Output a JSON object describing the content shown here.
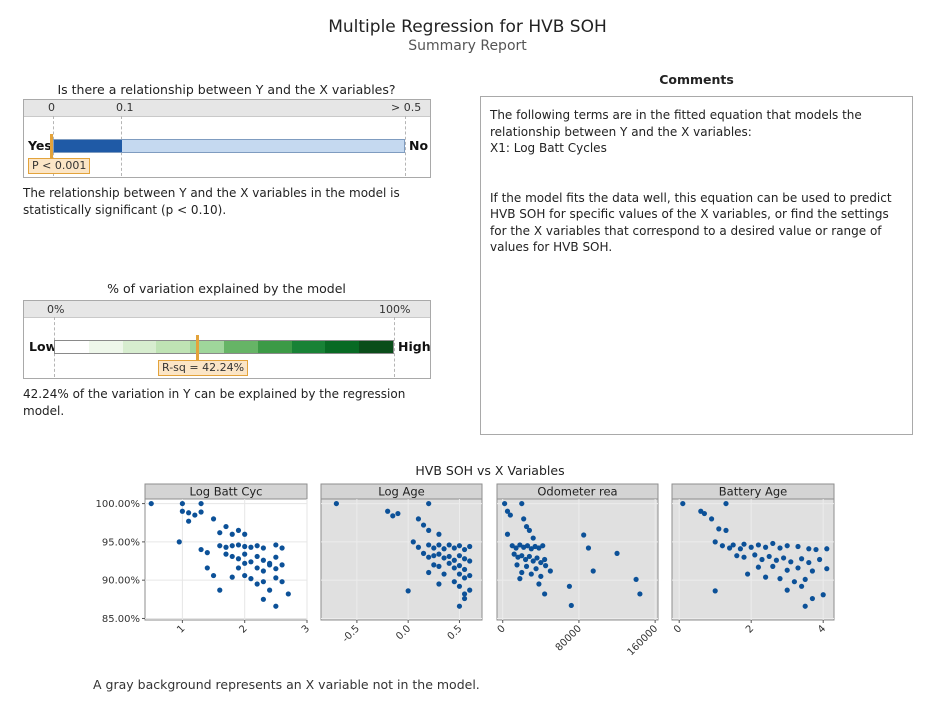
{
  "report": {
    "title": "Multiple Regression for HVB SOH",
    "subtitle": "Summary Report"
  },
  "relationship": {
    "question": "Is there a relationship between Y and the X variables?",
    "scale_labels": [
      "0",
      "0.1",
      "> 0.5"
    ],
    "left_label": "Yes",
    "right_label": "No",
    "p_label": "P < 0.001",
    "p_value": 0.001,
    "conclusion": "The relationship between Y and the X variables in the model is statistically significant (p < 0.10).",
    "colors": {
      "significant": "#1f5aa6",
      "not_significant": "#c5d9f0",
      "marker": "#e3a33b"
    }
  },
  "variation": {
    "heading": "% of variation explained by the model",
    "scale_labels": [
      "0%",
      "100%"
    ],
    "left_label": "Low",
    "right_label": "High",
    "rsq_label": "R-sq = 42.24%",
    "rsq_value": 42.24,
    "conclusion": "42.24% of the variation in Y can be explained by the regression model.",
    "band_colors": [
      "#ffffff",
      "#eef7ea",
      "#d7edcf",
      "#bfe3b4",
      "#9fd69b",
      "#66b466",
      "#3c9a46",
      "#188236",
      "#086a24",
      "#0a4d1a"
    ]
  },
  "comments": {
    "heading": "Comments",
    "lines": [
      "The following terms are in the fitted equation that models the relationship between Y and the X variables:",
      "X1: Log Batt Cycles",
      "If the model fits the data well, this equation can be used to predict HVB SOH for specific values of the X variables, or find the settings for the X variables that correspond to a desired value or range of values for HVB SOH."
    ]
  },
  "scatter_section": {
    "heading": "HVB SOH vs X Variables",
    "footer": "A gray background represents an X variable not in the model."
  },
  "chart_data": [
    {
      "type": "scatter",
      "panel": "Log Batt Cyc",
      "in_model": true,
      "ylabel_ticks": [
        "85.00%",
        "90.00%",
        "95.00%",
        "100.00%"
      ],
      "ylim": [
        84.8,
        100.6
      ],
      "xlim": [
        0.4,
        3.0
      ],
      "xticks": [
        1,
        2,
        3
      ],
      "xtick_labels": [
        "1",
        "2",
        "3"
      ],
      "points": [
        [
          0.5,
          100
        ],
        [
          1.0,
          100
        ],
        [
          1.3,
          100
        ],
        [
          1.0,
          99
        ],
        [
          1.1,
          98.8
        ],
        [
          1.2,
          98.5
        ],
        [
          1.3,
          98.9
        ],
        [
          1.1,
          97.7
        ],
        [
          1.5,
          98
        ],
        [
          1.7,
          97
        ],
        [
          1.6,
          96.2
        ],
        [
          1.9,
          96.5
        ],
        [
          1.8,
          96
        ],
        [
          2.0,
          96
        ],
        [
          0.95,
          95
        ],
        [
          1.3,
          94
        ],
        [
          1.4,
          93.6
        ],
        [
          1.6,
          94.5
        ],
        [
          1.7,
          94.3
        ],
        [
          1.8,
          94.5
        ],
        [
          1.9,
          94.6
        ],
        [
          2.0,
          94.4
        ],
        [
          2.1,
          94.3
        ],
        [
          2.2,
          94.5
        ],
        [
          2.3,
          94.2
        ],
        [
          2.5,
          94.6
        ],
        [
          2.6,
          94.2
        ],
        [
          1.7,
          93.4
        ],
        [
          1.8,
          93.1
        ],
        [
          1.9,
          92.8
        ],
        [
          2.0,
          93.4
        ],
        [
          2.1,
          92.4
        ],
        [
          2.2,
          93.1
        ],
        [
          2.3,
          92.6
        ],
        [
          2.4,
          92.2
        ],
        [
          2.5,
          93.0
        ],
        [
          2.6,
          92.0
        ],
        [
          2.0,
          92.2
        ],
        [
          2.2,
          91.6
        ],
        [
          2.3,
          91.2
        ],
        [
          2.4,
          92.0
        ],
        [
          2.5,
          91.5
        ],
        [
          1.9,
          91.6
        ],
        [
          1.4,
          91.6
        ],
        [
          1.5,
          90.6
        ],
        [
          1.8,
          90.4
        ],
        [
          2.0,
          90.6
        ],
        [
          2.1,
          90.2
        ],
        [
          2.3,
          89.8
        ],
        [
          2.5,
          90.3
        ],
        [
          2.6,
          89.8
        ],
        [
          2.7,
          88.2
        ],
        [
          2.2,
          89.5
        ],
        [
          1.6,
          88.7
        ],
        [
          2.4,
          88.7
        ],
        [
          2.5,
          86.6
        ],
        [
          2.3,
          87.5
        ]
      ]
    },
    {
      "type": "scatter",
      "panel": "Log Age",
      "in_model": false,
      "ylim": [
        84.8,
        100.6
      ],
      "xlim": [
        -0.85,
        0.72
      ],
      "xticks": [
        -0.5,
        0.0,
        0.5
      ],
      "xtick_labels": [
        "-0.5",
        "0.0",
        "0.5"
      ],
      "points": [
        [
          -0.7,
          100
        ],
        [
          -0.2,
          99
        ],
        [
          -0.1,
          98.7
        ],
        [
          -0.15,
          98.4
        ],
        [
          0.2,
          100
        ],
        [
          0.1,
          98
        ],
        [
          0.15,
          97.2
        ],
        [
          0.2,
          96.5
        ],
        [
          0.3,
          96
        ],
        [
          0.05,
          95
        ],
        [
          0.1,
          94.3
        ],
        [
          0.2,
          94.6
        ],
        [
          0.25,
          94.2
        ],
        [
          0.3,
          94.6
        ],
        [
          0.35,
          94.1
        ],
        [
          0.4,
          94.6
        ],
        [
          0.45,
          94.2
        ],
        [
          0.5,
          94.5
        ],
        [
          0.55,
          94
        ],
        [
          0.6,
          94.4
        ],
        [
          0.15,
          93.5
        ],
        [
          0.2,
          93
        ],
        [
          0.25,
          93.2
        ],
        [
          0.3,
          93.4
        ],
        [
          0.35,
          92.9
        ],
        [
          0.4,
          93.1
        ],
        [
          0.45,
          92.6
        ],
        [
          0.5,
          93.2
        ],
        [
          0.55,
          92.8
        ],
        [
          0.6,
          92.5
        ],
        [
          0.25,
          92
        ],
        [
          0.3,
          91.8
        ],
        [
          0.4,
          92.2
        ],
        [
          0.45,
          91.6
        ],
        [
          0.5,
          91.9
        ],
        [
          0.55,
          91.4
        ],
        [
          0.2,
          91
        ],
        [
          0.35,
          90.8
        ],
        [
          0.5,
          90.8
        ],
        [
          0.55,
          90.3
        ],
        [
          0.6,
          90.6
        ],
        [
          0.0,
          88.6
        ],
        [
          0.45,
          89.8
        ],
        [
          0.5,
          89.2
        ],
        [
          0.55,
          88.2
        ],
        [
          0.3,
          89.5
        ],
        [
          0.6,
          88.7
        ],
        [
          0.5,
          86.6
        ],
        [
          0.55,
          87.6
        ]
      ]
    },
    {
      "type": "scatter",
      "panel": "Odometer rea",
      "in_model": false,
      "ylim": [
        84.8,
        100.6
      ],
      "xlim": [
        -6000,
        163000
      ],
      "xticks": [
        0,
        80000,
        160000
      ],
      "xtick_labels": [
        "0",
        "80000",
        "160000"
      ],
      "points": [
        [
          2000,
          100
        ],
        [
          5000,
          99
        ],
        [
          8000,
          98.5
        ],
        [
          20000,
          100
        ],
        [
          22000,
          98
        ],
        [
          25000,
          97
        ],
        [
          28000,
          96.5
        ],
        [
          32000,
          95.5
        ],
        [
          5000,
          96
        ],
        [
          10000,
          94.5
        ],
        [
          14000,
          94.2
        ],
        [
          18000,
          94.6
        ],
        [
          22000,
          94.3
        ],
        [
          26000,
          94.5
        ],
        [
          30000,
          94.1
        ],
        [
          34000,
          94.4
        ],
        [
          38000,
          94.2
        ],
        [
          42000,
          94.5
        ],
        [
          12000,
          93.4
        ],
        [
          16000,
          93
        ],
        [
          20000,
          93.2
        ],
        [
          24000,
          92.7
        ],
        [
          28000,
          93.1
        ],
        [
          32000,
          92.5
        ],
        [
          36000,
          92.9
        ],
        [
          40000,
          92.3
        ],
        [
          44000,
          92.7
        ],
        [
          15000,
          92
        ],
        [
          25000,
          91.8
        ],
        [
          35000,
          91.5
        ],
        [
          45000,
          91.9
        ],
        [
          20000,
          91
        ],
        [
          30000,
          90.8
        ],
        [
          40000,
          90.5
        ],
        [
          50000,
          91.2
        ],
        [
          18000,
          90.2
        ],
        [
          38000,
          89.5
        ],
        [
          44000,
          88.2
        ],
        [
          70000,
          89.2
        ],
        [
          72000,
          86.7
        ],
        [
          85000,
          95.9
        ],
        [
          90000,
          94.2
        ],
        [
          95000,
          91.2
        ],
        [
          120000,
          93.5
        ],
        [
          140000,
          90.1
        ],
        [
          144000,
          88.2
        ]
      ]
    },
    {
      "type": "scatter",
      "panel": "Battery Age",
      "in_model": false,
      "ylim": [
        84.8,
        100.6
      ],
      "xlim": [
        -0.2,
        4.3
      ],
      "xticks": [
        0,
        2,
        4
      ],
      "xtick_labels": [
        "0",
        "2",
        "4"
      ],
      "points": [
        [
          0.1,
          100
        ],
        [
          0.6,
          99
        ],
        [
          0.7,
          98.7
        ],
        [
          0.9,
          98
        ],
        [
          1.3,
          100
        ],
        [
          1.1,
          96.7
        ],
        [
          1.3,
          96.5
        ],
        [
          1.0,
          95
        ],
        [
          1.2,
          94.5
        ],
        [
          1.4,
          94.2
        ],
        [
          1.5,
          94.6
        ],
        [
          1.7,
          94.1
        ],
        [
          1.8,
          94.7
        ],
        [
          2.0,
          94.3
        ],
        [
          2.2,
          94.6
        ],
        [
          2.4,
          94.3
        ],
        [
          2.6,
          94.8
        ],
        [
          2.8,
          94.2
        ],
        [
          3.0,
          94.5
        ],
        [
          3.3,
          94.4
        ],
        [
          3.6,
          94.1
        ],
        [
          3.8,
          94.0
        ],
        [
          4.1,
          94.1
        ],
        [
          1.6,
          93.2
        ],
        [
          1.8,
          93
        ],
        [
          2.1,
          93.3
        ],
        [
          2.3,
          92.7
        ],
        [
          2.5,
          93.1
        ],
        [
          2.7,
          92.6
        ],
        [
          2.9,
          92.9
        ],
        [
          3.1,
          92.4
        ],
        [
          3.4,
          92.8
        ],
        [
          3.6,
          92.3
        ],
        [
          3.9,
          92.7
        ],
        [
          4.1,
          91.5
        ],
        [
          2.2,
          91.7
        ],
        [
          2.6,
          91.8
        ],
        [
          3.0,
          91.3
        ],
        [
          3.3,
          91.6
        ],
        [
          3.7,
          91.2
        ],
        [
          1.9,
          90.8
        ],
        [
          2.4,
          90.4
        ],
        [
          2.8,
          90.2
        ],
        [
          3.2,
          89.8
        ],
        [
          3.5,
          90.1
        ],
        [
          1.0,
          88.6
        ],
        [
          3.0,
          88.7
        ],
        [
          3.4,
          89.2
        ],
        [
          4.0,
          88.1
        ],
        [
          3.5,
          86.6
        ],
        [
          3.7,
          87.6
        ]
      ]
    }
  ],
  "colors": {
    "point": "#0c5198",
    "panel_in_model": "#ffffff",
    "panel_out_model": "#e0e0e0",
    "strip": "#d4d4d4"
  }
}
